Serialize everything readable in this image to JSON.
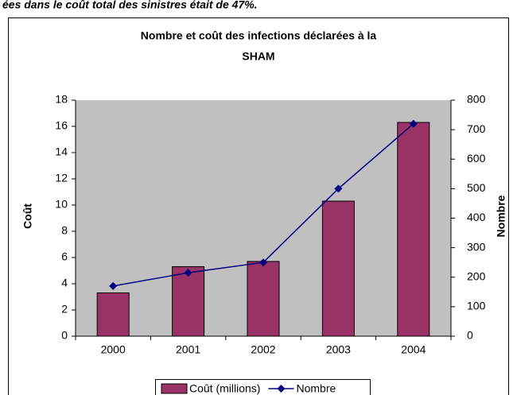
{
  "header_text": "ées dans le coût total des sinistres était de 47%.",
  "chart_data": {
    "type": "bar_line",
    "title": [
      "Nombre et coût des infections déclarées à la",
      "SHAM"
    ],
    "categories": [
      "2000",
      "2001",
      "2002",
      "2003",
      "2004"
    ],
    "series": [
      {
        "name": "Coût (millions)",
        "color": "#993366",
        "type": "bar",
        "values": [
          3.3,
          5.3,
          5.7,
          10.3,
          16.3
        ]
      },
      {
        "name": "Nombre",
        "color": "#000080",
        "type": "line",
        "axis": "y2",
        "values": [
          170,
          215,
          250,
          500,
          720
        ]
      }
    ],
    "ylabel": "Coût",
    "y2label": "Nombre",
    "ylim": [
      0,
      18
    ],
    "yticks": [
      0,
      2,
      4,
      6,
      8,
      10,
      12,
      14,
      16,
      18
    ],
    "y2lim": [
      0,
      800
    ],
    "y2ticks": [
      0,
      100,
      200,
      300,
      400,
      500,
      600,
      700,
      800
    ],
    "plot_background": "#c0c0c0"
  }
}
